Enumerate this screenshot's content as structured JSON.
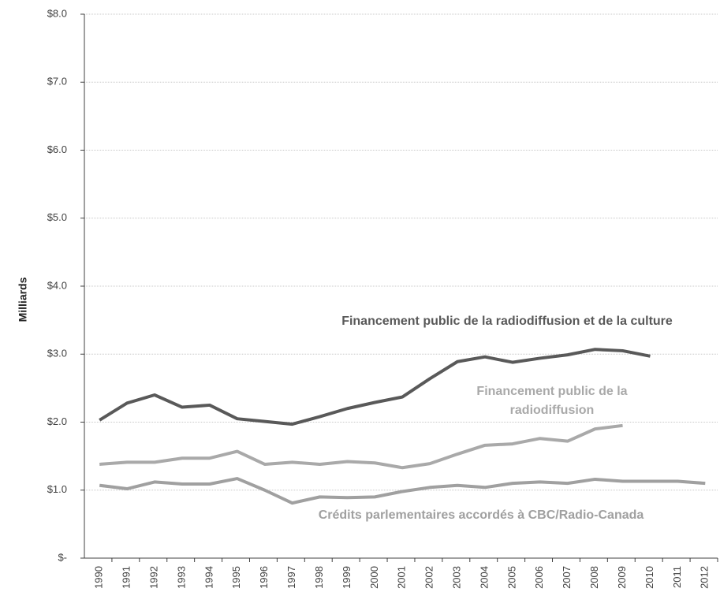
{
  "chart_data": {
    "type": "line",
    "ylabel": "Milliards",
    "categories": [
      "1990",
      "1991",
      "1992",
      "1993",
      "1994",
      "1995",
      "1996",
      "1997",
      "1998",
      "1999",
      "2000",
      "2001",
      "2002",
      "2003",
      "2004",
      "2005",
      "2006",
      "2007",
      "2008",
      "2009",
      "2010",
      "2011",
      "2012"
    ],
    "series": [
      {
        "name": "Financement public de la radiodiffusion et de la culture",
        "color": "#595959",
        "values": [
          2.03,
          2.28,
          2.4,
          2.22,
          2.25,
          2.05,
          2.01,
          1.97,
          2.08,
          2.2,
          2.29,
          2.37,
          2.64,
          2.89,
          2.96,
          2.88,
          2.94,
          2.99,
          3.07,
          3.05,
          2.97,
          null,
          null
        ]
      },
      {
        "name": "Financement public de la radiodiffusion",
        "color": "#a9a9a9",
        "values": [
          1.38,
          1.41,
          1.41,
          1.47,
          1.47,
          1.57,
          1.38,
          1.41,
          1.38,
          1.42,
          1.4,
          1.33,
          1.39,
          1.53,
          1.66,
          1.68,
          1.76,
          1.72,
          1.9,
          1.95,
          null,
          null,
          null
        ]
      },
      {
        "name": "Crédits parlementaires accordés à CBC/Radio-Canada",
        "color": "#a0a0a0",
        "values": [
          1.07,
          1.02,
          1.12,
          1.09,
          1.09,
          1.17,
          1.0,
          0.81,
          0.9,
          0.89,
          0.9,
          0.98,
          1.04,
          1.07,
          1.04,
          1.1,
          1.12,
          1.1,
          1.16,
          1.13,
          1.13,
          1.13,
          1.1
        ]
      }
    ],
    "ylim": [
      0,
      8
    ],
    "yticks": [
      {
        "value": 0,
        "label": "$-"
      },
      {
        "value": 1,
        "label": "$1.0"
      },
      {
        "value": 2,
        "label": "$2.0"
      },
      {
        "value": 3,
        "label": "$3.0"
      },
      {
        "value": 4,
        "label": "$4.0"
      },
      {
        "value": 5,
        "label": "$5.0"
      },
      {
        "value": 6,
        "label": "$6.0"
      },
      {
        "value": 7,
        "label": "$7.0"
      },
      {
        "value": 8,
        "label": "$8.0"
      }
    ],
    "grid": true
  }
}
